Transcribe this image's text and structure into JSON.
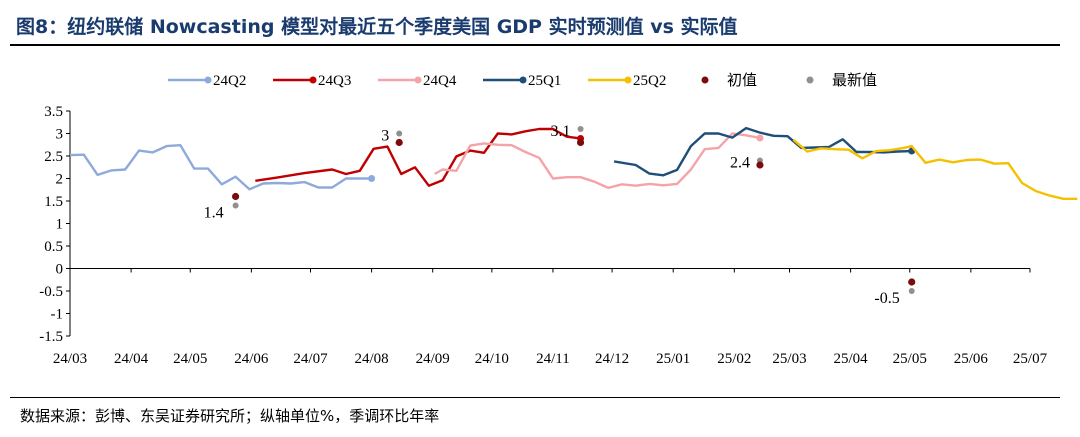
{
  "figure": {
    "title": "图8：纽约联储 Nowcasting 模型对最近五个季度美国 GDP 实时预测值 vs 实际值",
    "source": "数据来源：彭博、东吴证券研究所；纵轴单位%，季调环比年率"
  },
  "chart_data": {
    "type": "line",
    "title": "图8：纽约联储 Nowcasting 模型对最近五个季度美国 GDP 实时预测值 vs 实际值",
    "xlabel": "",
    "ylabel": "",
    "x_ticks": [
      "24/03",
      "24/04",
      "24/05",
      "24/06",
      "24/07",
      "24/08",
      "24/09",
      "24/10",
      "24/11",
      "24/12",
      "25/01",
      "25/02",
      "25/03",
      "25/04",
      "25/05",
      "25/06",
      "25/07"
    ],
    "y_ticks": [
      "-1.5",
      "-1",
      "-0.5",
      "0",
      "0.5",
      "1",
      "1.5",
      "2",
      "2.5",
      "3",
      "3.5"
    ],
    "xlim": [
      "24/03",
      "25/07"
    ],
    "ylim": [
      -1.5,
      3.5
    ],
    "grid": false,
    "legend_position": "top",
    "series": [
      {
        "name": "24Q2",
        "color": "#8eaadb",
        "x": [
          "2024-03-01",
          "2024-03-08",
          "2024-03-15",
          "2024-03-22",
          "2024-03-29",
          "2024-04-05",
          "2024-04-12",
          "2024-04-19",
          "2024-04-26",
          "2024-05-03",
          "2024-05-10",
          "2024-05-17",
          "2024-05-24",
          "2024-05-31",
          "2024-06-07",
          "2024-06-14",
          "2024-06-21",
          "2024-06-28",
          "2024-07-05",
          "2024-07-12",
          "2024-07-19",
          "2024-07-26",
          "2024-08-01"
        ],
        "y": [
          2.52,
          2.53,
          2.08,
          2.18,
          2.2,
          2.62,
          2.58,
          2.72,
          2.74,
          2.22,
          2.22,
          1.87,
          2.04,
          1.76,
          1.89,
          1.9,
          1.89,
          1.92,
          1.8,
          1.8,
          2.0,
          2.0,
          2.0
        ]
      },
      {
        "name": "24Q3",
        "color": "#c00000",
        "x": [
          "2024-06-03",
          "2024-06-14",
          "2024-06-28",
          "2024-07-12",
          "2024-07-19",
          "2024-07-26",
          "2024-08-02",
          "2024-08-09",
          "2024-08-16",
          "2024-08-23",
          "2024-08-30",
          "2024-09-06",
          "2024-09-13",
          "2024-09-20",
          "2024-09-27",
          "2024-10-04",
          "2024-10-11",
          "2024-10-18",
          "2024-10-25",
          "2024-11-01",
          "2024-11-08",
          "2024-11-15"
        ],
        "y": [
          1.95,
          2.02,
          2.12,
          2.2,
          2.1,
          2.17,
          2.66,
          2.71,
          2.1,
          2.25,
          1.84,
          1.96,
          2.49,
          2.62,
          2.57,
          3.0,
          2.98,
          3.05,
          3.1,
          3.1,
          2.93,
          2.89
        ]
      },
      {
        "name": "24Q4",
        "color": "#f4a4a8",
        "x": [
          "2024-09-02",
          "2024-09-06",
          "2024-09-13",
          "2024-09-20",
          "2024-09-27",
          "2024-10-04",
          "2024-10-11",
          "2024-10-18",
          "2024-10-25",
          "2024-11-01",
          "2024-11-08",
          "2024-11-15",
          "2024-11-22",
          "2024-11-29",
          "2024-12-06",
          "2024-12-13",
          "2024-12-20",
          "2024-12-27",
          "2025-01-03",
          "2025-01-10",
          "2025-01-17",
          "2025-01-24",
          "2025-01-31",
          "2025-02-07",
          "2025-02-14"
        ],
        "y": [
          2.1,
          2.2,
          2.17,
          2.73,
          2.78,
          2.75,
          2.74,
          2.59,
          2.46,
          2.0,
          2.03,
          2.03,
          1.93,
          1.79,
          1.87,
          1.84,
          1.88,
          1.85,
          1.88,
          2.2,
          2.65,
          2.68,
          3.0,
          2.96,
          2.9
        ]
      },
      {
        "name": "25Q1",
        "color": "#1f4e79",
        "x": [
          "2024-12-02",
          "2024-12-13",
          "2024-12-20",
          "2024-12-27",
          "2025-01-03",
          "2025-01-10",
          "2025-01-17",
          "2025-01-24",
          "2025-01-31",
          "2025-02-07",
          "2025-02-14",
          "2025-02-21",
          "2025-02-28",
          "2025-03-07",
          "2025-03-14",
          "2025-03-21",
          "2025-03-28",
          "2025-04-04",
          "2025-04-11",
          "2025-04-18",
          "2025-04-25",
          "2025-05-02"
        ],
        "y": [
          2.38,
          2.3,
          2.11,
          2.07,
          2.19,
          2.72,
          3.0,
          3.0,
          2.91,
          3.12,
          3.02,
          2.95,
          2.94,
          2.68,
          2.69,
          2.7,
          2.87,
          2.59,
          2.59,
          2.58,
          2.6,
          2.61
        ]
      },
      {
        "name": "25Q2",
        "color": "#f5c000",
        "x": [
          "2025-03-03",
          "2025-03-10",
          "2025-03-17",
          "2025-03-24",
          "2025-03-31",
          "2025-04-07",
          "2025-04-14",
          "2025-04-21",
          "2025-04-28",
          "2025-05-02",
          "2025-05-09",
          "2025-05-16",
          "2025-05-23",
          "2025-05-30",
          "2025-06-06",
          "2025-06-13",
          "2025-06-20",
          "2025-06-27",
          "2025-07-04",
          "2025-07-11",
          "2025-07-18",
          "2025-07-25"
        ],
        "y": [
          2.86,
          2.6,
          2.67,
          2.65,
          2.64,
          2.45,
          2.61,
          2.63,
          2.68,
          2.72,
          2.35,
          2.42,
          2.36,
          2.41,
          2.42,
          2.33,
          2.34,
          1.9,
          1.72,
          1.62,
          1.55,
          1.55
        ]
      }
    ],
    "markers": [
      {
        "name": "初值",
        "color": "#7b0c0c"
      },
      {
        "name": "最新值",
        "color": "#909090"
      }
    ],
    "points": [
      {
        "quarter": "24Q2",
        "date": "2024-05-24",
        "initial": 1.6,
        "latest": 1.4,
        "label": "1.4"
      },
      {
        "quarter": "24Q3",
        "date": "2024-08-15",
        "initial": 2.8,
        "latest": 3.0,
        "label": "3"
      },
      {
        "quarter": "24Q4",
        "date": "2024-11-15",
        "initial": 2.8,
        "latest": 3.1,
        "label": "3.1"
      },
      {
        "quarter": "25Q1",
        "date": "2025-02-14",
        "initial": 2.3,
        "latest": 2.4,
        "label": "2.4"
      },
      {
        "quarter": "25Q2",
        "date": "2025-05-02",
        "initial": -0.3,
        "latest": -0.5,
        "label": "-0.5"
      }
    ]
  }
}
